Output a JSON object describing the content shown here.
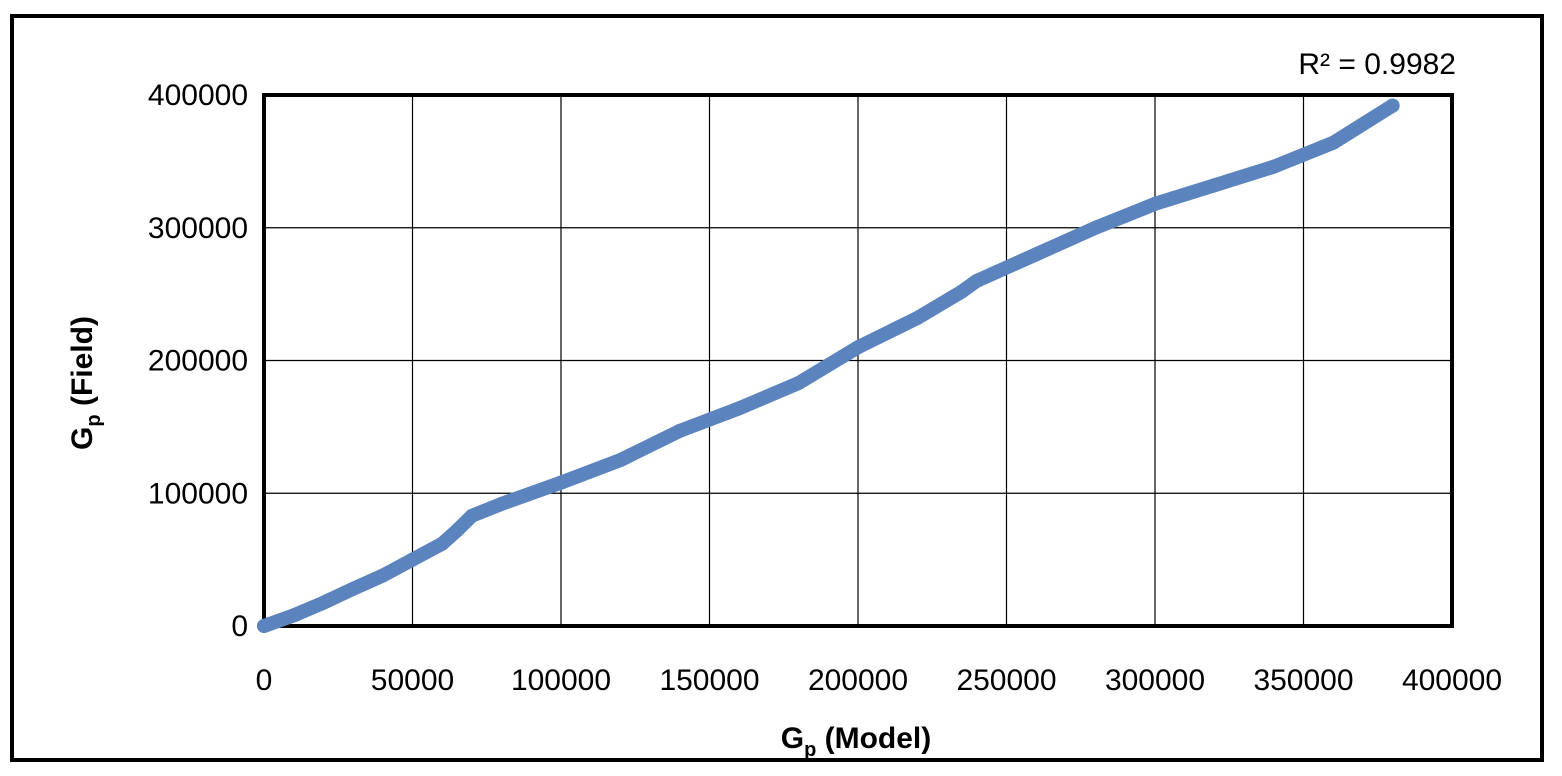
{
  "chart_data": {
    "type": "scatter",
    "xlabel": {
      "main": "G",
      "sub": "p",
      "rest": " (Model)"
    },
    "ylabel": {
      "main": "G",
      "sub": "p",
      "rest": " (Field)"
    },
    "xlim": [
      0,
      400000
    ],
    "ylim": [
      0,
      400000
    ],
    "x_ticks": [
      "0",
      "50000",
      "100000",
      "150000",
      "200000",
      "250000",
      "300000",
      "350000",
      "400000"
    ],
    "y_ticks": [
      "0",
      "100000",
      "200000",
      "300000",
      "400000"
    ],
    "grid": true,
    "annotation": "R² = 0.9982",
    "series_color": "#5b84bf",
    "points": [
      [
        0,
        0
      ],
      [
        10000,
        8000
      ],
      [
        20000,
        17500
      ],
      [
        30000,
        28000
      ],
      [
        40000,
        38000
      ],
      [
        50000,
        50000
      ],
      [
        60000,
        62000
      ],
      [
        65000,
        72000
      ],
      [
        70000,
        83000
      ],
      [
        80000,
        92000
      ],
      [
        100000,
        108000
      ],
      [
        120000,
        125000
      ],
      [
        140000,
        147000
      ],
      [
        160000,
        164000
      ],
      [
        180000,
        183000
      ],
      [
        200000,
        210000
      ],
      [
        220000,
        232000
      ],
      [
        235000,
        252000
      ],
      [
        240000,
        260000
      ],
      [
        260000,
        280000
      ],
      [
        280000,
        300000
      ],
      [
        300000,
        318000
      ],
      [
        320000,
        332000
      ],
      [
        340000,
        346000
      ],
      [
        360000,
        364000
      ],
      [
        380000,
        392000
      ]
    ]
  }
}
